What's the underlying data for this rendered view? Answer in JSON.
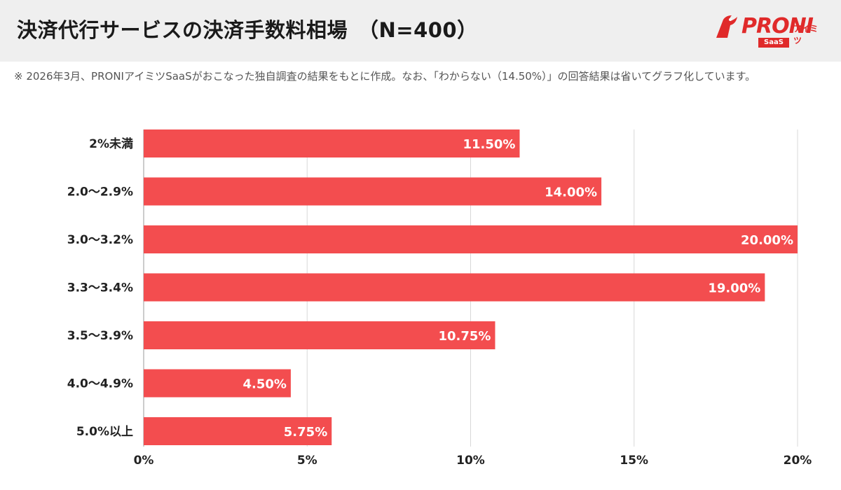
{
  "header": {
    "title": "決済代行サービスの決済手数料相場　（N=400）",
    "logo": {
      "brand": "PRONI",
      "sub": "アイミツ",
      "badge": "SaaS",
      "brand_color": "#e02a2a"
    }
  },
  "note": "※ 2026年3月、PRONIアイミツSaaSがおこなった独自調査の結果をもとに作成。なお、「わからない（14.50%）」の回答結果は省いてグラフ化しています。",
  "chart_data": {
    "type": "bar",
    "orientation": "horizontal",
    "categories": [
      "2%未満",
      "2.0〜2.9%",
      "3.0〜3.2%",
      "3.3〜3.4%",
      "3.5〜3.9%",
      "4.0〜4.9%",
      "5.0%以上"
    ],
    "values": [
      11.5,
      14.0,
      20.0,
      19.0,
      10.75,
      4.5,
      5.75
    ],
    "value_labels": [
      "11.50%",
      "14.00%",
      "20.00%",
      "19.00%",
      "10.75%",
      "4.50%",
      "5.75%"
    ],
    "x_ticks": [
      0,
      5,
      10,
      15,
      20
    ],
    "x_tick_labels": [
      "0%",
      "5%",
      "10%",
      "15%",
      "20%"
    ],
    "xlim": [
      0,
      20
    ],
    "grid": true,
    "bar_color": "#f34d4f",
    "label_color": "#ffffff",
    "title": "",
    "xlabel": "",
    "ylabel": ""
  }
}
